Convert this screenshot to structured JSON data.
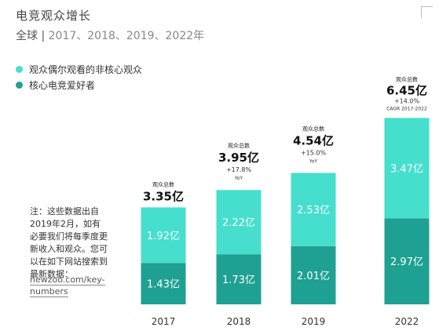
{
  "header": {
    "title": "电竞观众增长",
    "subtitle_region": "全球",
    "subtitle_divider": "|",
    "subtitle_years": "2017、2018、2019、2022年"
  },
  "note": {
    "text": "注：这些数据出自2019年2月，如有必要我们将每季度更新收入和观众。您可以在如下网站搜索到最新数据：",
    "link": "newzoo.com/key-numbers"
  },
  "colors": {
    "occasional": "#46dfcd",
    "enthusiasts": "#1ea192"
  },
  "chart_data": {
    "type": "bar",
    "stacked": true,
    "categories": [
      "2017",
      "2018",
      "2019",
      "2022"
    ],
    "series": [
      {
        "name": "核心电竞爱好者",
        "values": [
          1.43,
          1.73,
          2.01,
          2.97
        ],
        "labels": [
          "1.43亿",
          "1.73亿",
          "2.01亿",
          "2.97亿"
        ]
      },
      {
        "name": "观众偶尔观看的非核心观众",
        "values": [
          1.92,
          2.22,
          2.53,
          3.47
        ],
        "labels": [
          "1.92亿",
          "2.22亿",
          "2.53亿",
          "3.47亿"
        ]
      }
    ],
    "totals": [
      {
        "caption": "观众总数",
        "value_label": "3.35亿",
        "value": 3.35,
        "growth": "",
        "growth_note": ""
      },
      {
        "caption": "观众总数",
        "value_label": "3.95亿",
        "value": 3.95,
        "growth": "+17.8%",
        "growth_note": "YoY"
      },
      {
        "caption": "观众总数",
        "value_label": "4.54亿",
        "value": 4.54,
        "growth": "+15.0%",
        "growth_note": "YoY"
      },
      {
        "caption": "观众总数",
        "value_label": "6.45亿",
        "value": 6.45,
        "growth": "+14.0%",
        "growth_note": "CAGR 2017-2022"
      }
    ],
    "legend": [
      "观众偶尔观看的非核心观众",
      "核心电竞爱好者"
    ],
    "legend_position": "top-left",
    "grid": false,
    "ylim": [
      0,
      6.45
    ]
  }
}
